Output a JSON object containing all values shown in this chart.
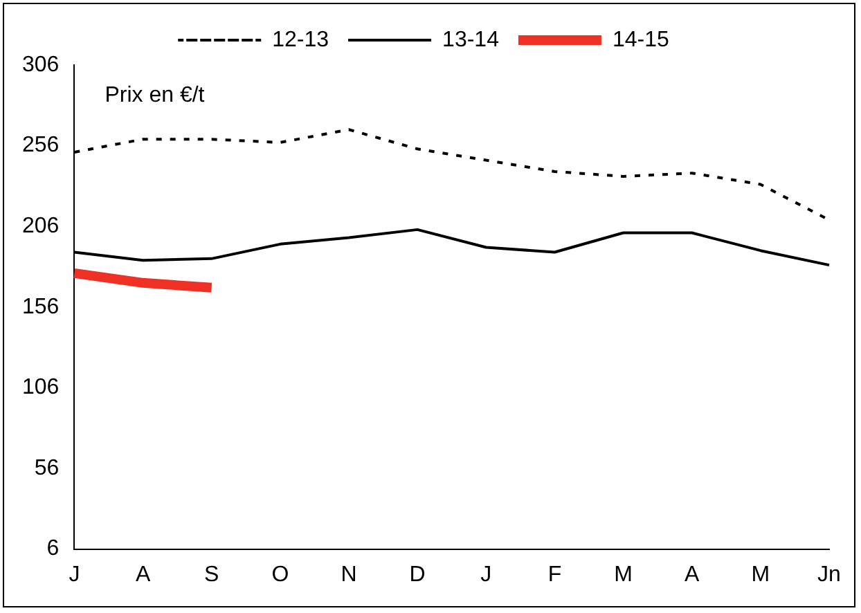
{
  "chart_data": {
    "type": "line",
    "categories": [
      "J",
      "A",
      "S",
      "O",
      "N",
      "D",
      "J",
      "F",
      "M",
      "A",
      "M",
      "Jn"
    ],
    "series": [
      {
        "name": "12-13",
        "color": "#000000",
        "line_style": "dashed",
        "values": [
          252,
          260,
          260,
          258,
          266,
          254,
          247,
          240,
          237,
          239,
          232,
          210
        ]
      },
      {
        "name": "13-14",
        "color": "#000000",
        "line_style": "solid",
        "values": [
          190,
          185,
          186,
          195,
          199,
          204,
          193,
          190,
          202,
          202,
          191,
          182
        ]
      },
      {
        "name": "14-15",
        "color": "#ee3124",
        "line_style": "solid",
        "values": [
          177,
          171,
          168,
          null,
          null,
          null,
          null,
          null,
          null,
          null,
          null,
          null
        ]
      }
    ],
    "ylim": [
      6,
      306
    ],
    "yticks": [
      6,
      56,
      106,
      156,
      206,
      256,
      306
    ],
    "grid": false,
    "legend": "top",
    "marker": "none",
    "annotations": [
      "Prix en €/t"
    ]
  }
}
